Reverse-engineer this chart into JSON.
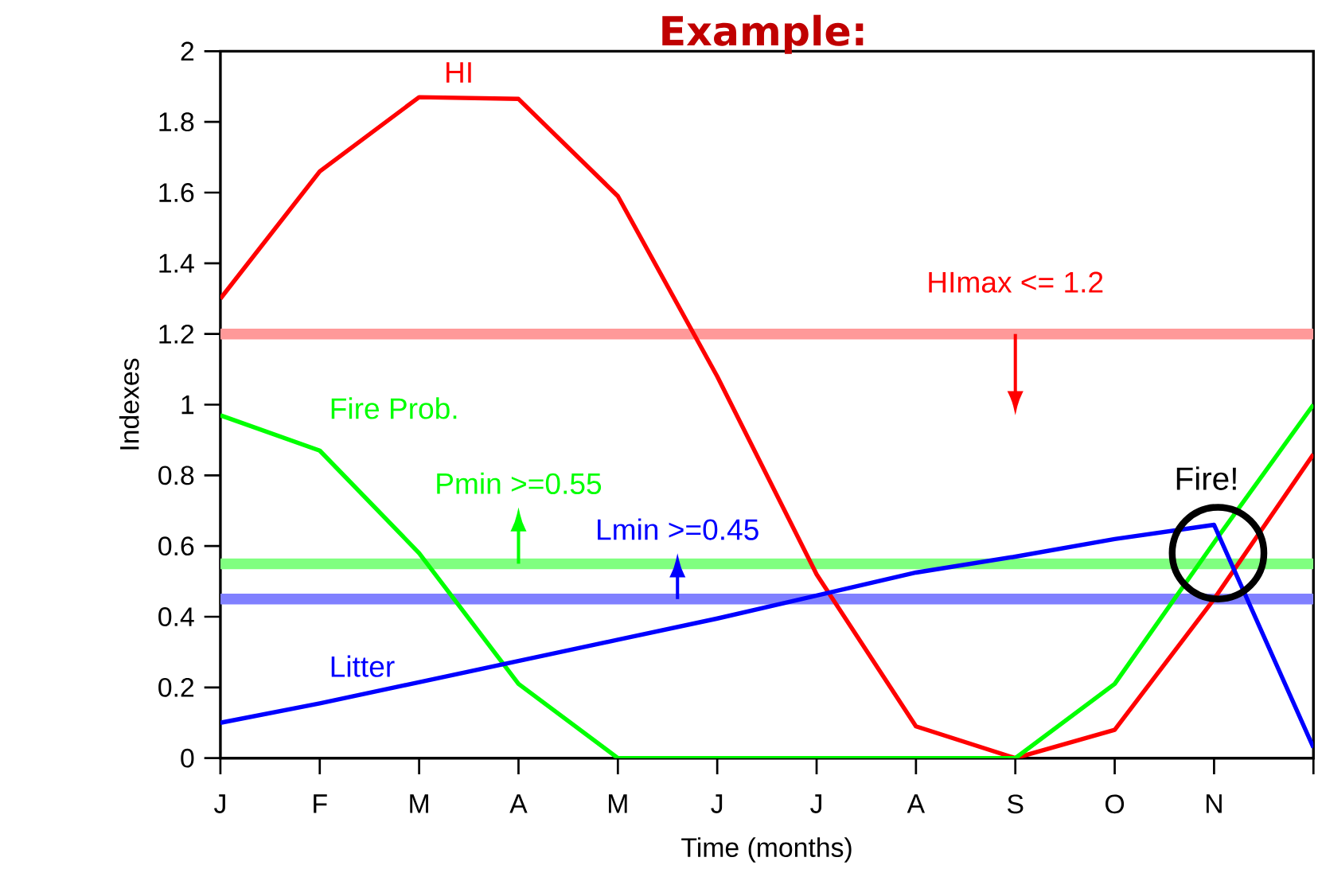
{
  "chart_data": {
    "type": "line",
    "title": "Example:",
    "xlabel": "Time (months)",
    "ylabel": "Indexes",
    "categories": [
      "J",
      "F",
      "M",
      "A",
      "M",
      "J",
      "J",
      "A",
      "S",
      "O",
      "N",
      null
    ],
    "ylim": [
      0,
      2
    ],
    "yticks": [
      0,
      0.2,
      0.4,
      0.6,
      0.8,
      1,
      1.2,
      1.4,
      1.6,
      1.8,
      2
    ],
    "series": [
      {
        "name": "HI",
        "color": "#ff0000",
        "values": [
          1.3,
          1.66,
          1.87,
          1.865,
          1.59,
          1.08,
          0.52,
          0.09,
          0.0,
          0.08,
          0.45,
          0.86
        ]
      },
      {
        "name": "Fire Prob.",
        "color": "#00ff00",
        "values": [
          0.97,
          0.87,
          0.58,
          0.21,
          0.0,
          0.0,
          0.0,
          0.0,
          0.0,
          0.21,
          0.61,
          1.0
        ]
      },
      {
        "name": "Litter",
        "color": "#0000ff",
        "values": [
          0.1,
          0.155,
          0.215,
          0.275,
          0.335,
          0.395,
          0.46,
          0.525,
          0.57,
          0.62,
          0.66,
          0.03
        ]
      }
    ],
    "ref_lines": [
      {
        "axis": "y",
        "value": 1.2,
        "label": "HImax <= 1.2",
        "color": "#ff9999"
      },
      {
        "axis": "y",
        "value": 0.55,
        "label": "Pmin >=0.55",
        "color": "#80ff80"
      },
      {
        "axis": "y",
        "value": 0.45,
        "label": "Lmin >=0.45",
        "color": "#8080ff"
      }
    ],
    "annotations": [
      "Fire!"
    ]
  }
}
